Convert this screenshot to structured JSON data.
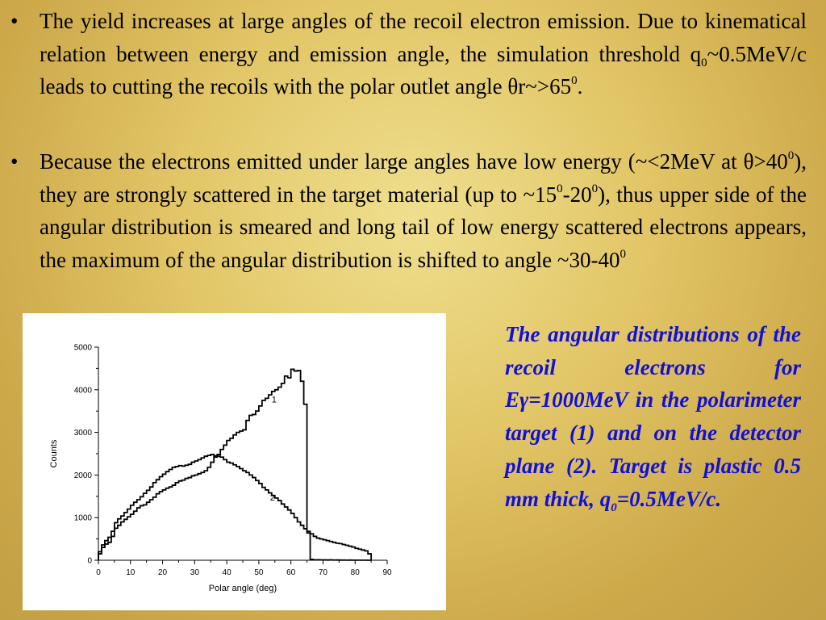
{
  "bullets": [
    {
      "marker": "•",
      "text_a": "The yield increases at large angles of the recoil electron emission. Due to kinematical relation between energy and emission angle, the simulation threshold q",
      "sub_a": "0",
      "text_b": "~0.5MeV/c leads to cutting the recoils with the polar outlet angle θr~>65",
      "sup_b": "0",
      "text_c": "."
    },
    {
      "marker": "•",
      "text_a": "Because the electrons emitted under large angles have low energy (~<2MeV at θ>40",
      "sup_a": "0",
      "text_b": "), they are strongly scattered in the target material (up to ~15",
      "sup_b": "0",
      "text_c": "-20",
      "sup_c": "0",
      "text_d": "), thus upper side of the angular distribution is smeared and long tail of low energy scattered electrons appears, the maximum of the angular distribution is shifted to angle ~30-40",
      "sup_d": "0"
    }
  ],
  "caption": {
    "text_a": "The angular distributions of the recoil electrons for Eγ=1000MeV in the polarimeter target (1) and on the detector plane (2). Target is plastic 0.5 mm thick, q",
    "sub_a": "0",
    "text_b": "=0.5MeV/c."
  },
  "chart_data": {
    "type": "line",
    "title": "",
    "xlabel": "Polar angle (deg)",
    "ylabel": "Counts",
    "xlim": [
      0,
      90
    ],
    "ylim": [
      0,
      5000
    ],
    "xticks": [
      0,
      10,
      20,
      30,
      40,
      50,
      60,
      70,
      80,
      90
    ],
    "yticks": [
      0,
      1000,
      2000,
      3000,
      4000,
      5000
    ],
    "step": true,
    "line_color": "#000000",
    "series": [
      {
        "name": "1",
        "x": [
          0,
          1,
          2,
          3,
          4,
          5,
          6,
          7,
          8,
          9,
          10,
          11,
          12,
          13,
          14,
          15,
          16,
          17,
          18,
          19,
          20,
          21,
          22,
          23,
          24,
          25,
          26,
          27,
          28,
          29,
          30,
          31,
          32,
          33,
          34,
          35,
          36,
          37,
          38,
          39,
          40,
          41,
          42,
          43,
          44,
          45,
          46,
          47,
          48,
          49,
          50,
          51,
          52,
          53,
          54,
          55,
          56,
          57,
          58,
          59,
          60,
          61,
          62,
          63,
          64,
          65,
          66,
          67,
          68,
          69,
          70,
          71,
          72,
          73,
          74,
          75,
          76,
          77,
          78,
          79,
          80,
          81,
          82,
          83,
          84
        ],
        "values": [
          150,
          300,
          380,
          420,
          560,
          750,
          820,
          900,
          960,
          1020,
          1080,
          1150,
          1230,
          1280,
          1300,
          1360,
          1420,
          1480,
          1560,
          1610,
          1650,
          1690,
          1720,
          1760,
          1820,
          1860,
          1880,
          1920,
          1940,
          1980,
          2000,
          2030,
          2060,
          2100,
          2180,
          2300,
          2420,
          2480,
          2600,
          2700,
          2810,
          2860,
          2940,
          3000,
          3030,
          3060,
          3280,
          3400,
          3420,
          3500,
          3620,
          3750,
          3800,
          3880,
          3960,
          4000,
          4060,
          4150,
          4320,
          4280,
          4480,
          4440,
          4450,
          4200,
          3660,
          640,
          20,
          10,
          12,
          8,
          10,
          6,
          8,
          5,
          6,
          4,
          5,
          3,
          4,
          3,
          3,
          2,
          2,
          2,
          0
        ]
      },
      {
        "name": "2",
        "x": [
          0,
          1,
          2,
          3,
          4,
          5,
          6,
          7,
          8,
          9,
          10,
          11,
          12,
          13,
          14,
          15,
          16,
          17,
          18,
          19,
          20,
          21,
          22,
          23,
          24,
          25,
          26,
          27,
          28,
          29,
          30,
          31,
          32,
          33,
          34,
          35,
          36,
          37,
          38,
          39,
          40,
          41,
          42,
          43,
          44,
          45,
          46,
          47,
          48,
          49,
          50,
          51,
          52,
          53,
          54,
          55,
          56,
          57,
          58,
          59,
          60,
          61,
          62,
          63,
          64,
          65,
          66,
          67,
          68,
          69,
          70,
          71,
          72,
          73,
          74,
          75,
          76,
          77,
          78,
          79,
          80,
          81,
          82,
          83,
          84
        ],
        "values": [
          200,
          360,
          460,
          540,
          680,
          880,
          970,
          1040,
          1120,
          1200,
          1290,
          1360,
          1420,
          1490,
          1570,
          1640,
          1720,
          1820,
          1890,
          1960,
          2020,
          2080,
          2130,
          2180,
          2200,
          2220,
          2210,
          2230,
          2250,
          2300,
          2330,
          2360,
          2400,
          2440,
          2460,
          2480,
          2450,
          2440,
          2420,
          2360,
          2300,
          2280,
          2240,
          2200,
          2150,
          2100,
          2060,
          2000,
          1940,
          1870,
          1800,
          1710,
          1650,
          1580,
          1520,
          1460,
          1400,
          1320,
          1250,
          1180,
          1100,
          1000,
          900,
          820,
          740,
          680,
          620,
          560,
          520,
          500,
          480,
          460,
          440,
          420,
          400,
          390,
          370,
          350,
          330,
          310,
          280,
          260,
          240,
          220,
          150
        ]
      }
    ]
  }
}
